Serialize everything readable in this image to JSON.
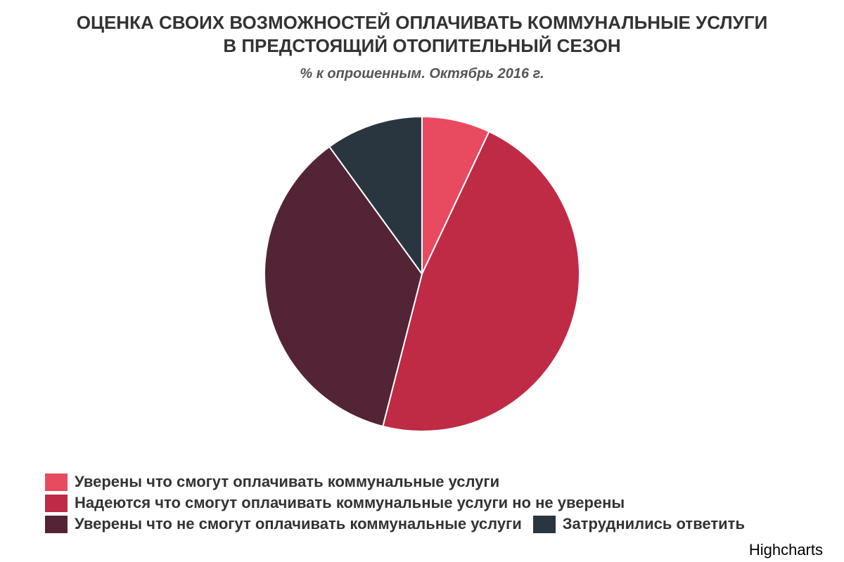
{
  "chart_data": {
    "type": "pie",
    "title_line1": "ОЦЕНКА СВОИХ ВОЗМОЖНОСТЕЙ ОПЛАЧИВАТЬ КОММУНАЛЬНЫЕ УСЛУГИ",
    "title_line2": "В ПРЕДСТОЯЩИЙ ОТОПИТЕЛЬНЫЙ СЕЗОН",
    "subtitle": "% к опрошенным. Октябрь 2016 г.",
    "slices": [
      {
        "name": "Уверены что смогут оплачивать коммунальные услуги",
        "value": 7,
        "color": "#e84a5f"
      },
      {
        "name": "Надеются что смогут оплачивать коммунальные услуги но не уверены",
        "value": 47,
        "color": "#bf2a45"
      },
      {
        "name": "Уверены что не смогут оплачивать коммунальные услуги",
        "value": 36,
        "color": "#532436"
      },
      {
        "name": "Затруднились ответить",
        "value": 10,
        "color": "#2a363f"
      }
    ],
    "legend_position": "bottom",
    "start_angle": "top, clockwise",
    "slice_border_color": "#ffffff"
  },
  "credits": "Highcharts"
}
